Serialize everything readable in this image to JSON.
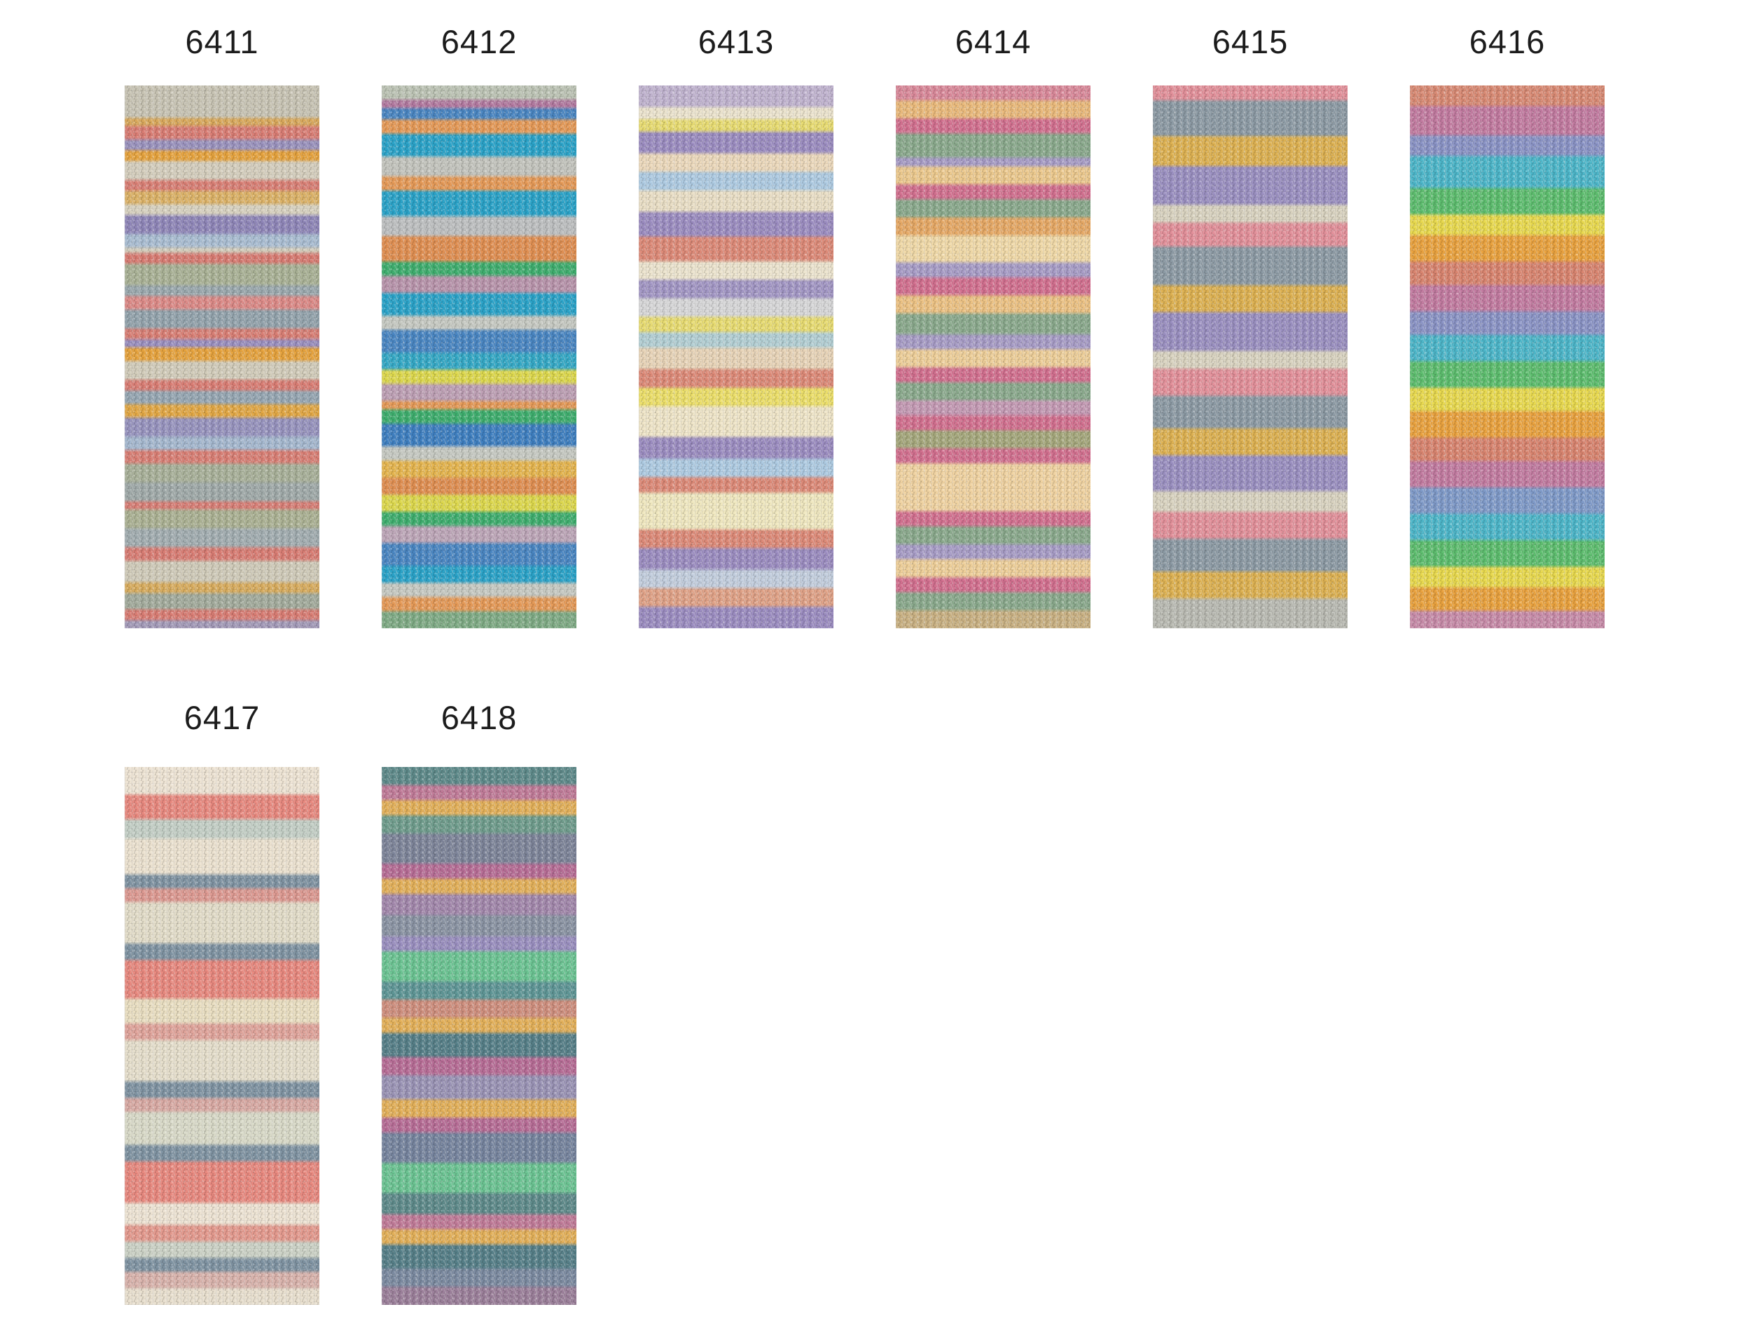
{
  "page": {
    "background_color": "#ffffff",
    "label_color": "#1c1c1c"
  },
  "swatches": [
    {
      "label": "6411",
      "description": "mottled cream-grey self-striping yarn with coral, gold, purple, blue and sage stripes",
      "stripes": [
        [
          "#c8c4b4",
          6
        ],
        [
          "#d9a95c",
          1.5
        ],
        [
          "#d97d74",
          2.5
        ],
        [
          "#9a92bd",
          2
        ],
        [
          "#e6a33e",
          2
        ],
        [
          "#d5cebd",
          3.5
        ],
        [
          "#d97f75",
          2
        ],
        [
          "#dcb267",
          2.5
        ],
        [
          "#d8d2c0",
          2
        ],
        [
          "#8f86b8",
          3.5
        ],
        [
          "#a9bdd2",
          2.5
        ],
        [
          "#d3cdbc",
          1
        ],
        [
          "#d87b72",
          2
        ],
        [
          "#a9b195",
          4
        ],
        [
          "#9aa8ad",
          2
        ],
        [
          "#dc8a87",
          2.5
        ],
        [
          "#93a3ac",
          3.5
        ],
        [
          "#d97f75",
          2
        ],
        [
          "#9a8fc0",
          1.5
        ],
        [
          "#e6a33e",
          2.5
        ],
        [
          "#d2ccba",
          3.5
        ],
        [
          "#d97d74",
          2
        ],
        [
          "#96a6b2",
          2.5
        ],
        [
          "#e2a846",
          2.5
        ],
        [
          "#9793be",
          3.5
        ],
        [
          "#a5b8cf",
          2.5
        ],
        [
          "#d97f75",
          2.5
        ],
        [
          "#a8b099",
          3.5
        ],
        [
          "#9fa9a8",
          3.5
        ],
        [
          "#d87e76",
          1.5
        ],
        [
          "#abb193",
          3.5
        ],
        [
          "#a2adb0",
          3.5
        ],
        [
          "#d97d74",
          2.5
        ],
        [
          "#d0cbb9",
          4
        ],
        [
          "#d8ac5e",
          2
        ],
        [
          "#a3ab9c",
          3
        ],
        [
          "#d97d74",
          2
        ],
        [
          "#a39ab8",
          1.5
        ]
      ]
    },
    {
      "label": "6412",
      "description": "bright teal-blue yarn with green, orange, yellow, mauve and grey stripes",
      "stripes": [
        [
          "#bcc3b4",
          2.5
        ],
        [
          "#b37aa0",
          1.5
        ],
        [
          "#4a86c2",
          2
        ],
        [
          "#e59a58",
          2.5
        ],
        [
          "#2ba3c8",
          4
        ],
        [
          "#c3c4bd",
          3.5
        ],
        [
          "#e59a58",
          2.5
        ],
        [
          "#2ba3c8",
          4.5
        ],
        [
          "#bdbfc0",
          3.5
        ],
        [
          "#e08f52",
          4.5
        ],
        [
          "#3fae6e",
          2.5
        ],
        [
          "#b894ab",
          3
        ],
        [
          "#2ba3c8",
          4
        ],
        [
          "#c6c9c2",
          2.5
        ],
        [
          "#4a86c2",
          4
        ],
        [
          "#35a9c6",
          3
        ],
        [
          "#ddd84e",
          2.5
        ],
        [
          "#bd9fb4",
          3
        ],
        [
          "#e59a58",
          1.5
        ],
        [
          "#3fae6e",
          2.5
        ],
        [
          "#3f7fc0",
          4
        ],
        [
          "#c6c9c2",
          2.5
        ],
        [
          "#e5b54f",
          3
        ],
        [
          "#e08f52",
          3
        ],
        [
          "#ddd84e",
          3
        ],
        [
          "#3fae6e",
          2.5
        ],
        [
          "#bda6b8",
          3
        ],
        [
          "#4a86c2",
          4
        ],
        [
          "#2ba3c8",
          3
        ],
        [
          "#c6c9c2",
          2.5
        ],
        [
          "#e59a58",
          2.5
        ],
        [
          "#7fab85",
          3
        ]
      ]
    },
    {
      "label": "6413",
      "description": "pastel lavender and cream yarn with salmon, yellow and light blue stripes",
      "stripes": [
        [
          "#c0b3cf",
          3.5
        ],
        [
          "#ece4ce",
          2
        ],
        [
          "#e8dc72",
          2
        ],
        [
          "#9b8cc0",
          3.5
        ],
        [
          "#ecd9bc",
          3
        ],
        [
          "#aecbe2",
          3
        ],
        [
          "#eadfc6",
          3.5
        ],
        [
          "#9b8cc0",
          4
        ],
        [
          "#dd8a78",
          4
        ],
        [
          "#ece4ce",
          3
        ],
        [
          "#a296c4",
          3
        ],
        [
          "#d7d7d8",
          3
        ],
        [
          "#e8dc72",
          2.5
        ],
        [
          "#b3cfd4",
          2.5
        ],
        [
          "#e8d4b8",
          3.5
        ],
        [
          "#dd8a78",
          3
        ],
        [
          "#ecdf6a",
          3
        ],
        [
          "#efe5c8",
          5
        ],
        [
          "#9b8cc0",
          3.5
        ],
        [
          "#aecbe2",
          3
        ],
        [
          "#dd8a78",
          2.5
        ],
        [
          "#f0e8c0",
          6
        ],
        [
          "#dd8a78",
          3
        ],
        [
          "#9b8cc0",
          3.5
        ],
        [
          "#c3cede",
          3
        ],
        [
          "#e0a287",
          3
        ],
        [
          "#9b8cc0",
          3.5
        ]
      ]
    },
    {
      "label": "6414",
      "description": "warm yarn with sage green, peach, rose pink, cream and lavender stripes",
      "stripes": [
        [
          "#d9899a",
          2.5
        ],
        [
          "#eaba7c",
          3
        ],
        [
          "#d2708f",
          2.5
        ],
        [
          "#8aa98c",
          4
        ],
        [
          "#a79cc6",
          1.5
        ],
        [
          "#ecc98e",
          3
        ],
        [
          "#d2708f",
          2.5
        ],
        [
          "#8aa98c",
          3
        ],
        [
          "#e6a966",
          3
        ],
        [
          "#f0d9a8",
          4.5
        ],
        [
          "#a79cc6",
          2.5
        ],
        [
          "#d2708f",
          3
        ],
        [
          "#ecc284",
          3
        ],
        [
          "#8aa98c",
          3.5
        ],
        [
          "#a79cc6",
          2.5
        ],
        [
          "#eecf9a",
          3
        ],
        [
          "#d2708f",
          2.5
        ],
        [
          "#8aa98c",
          3
        ],
        [
          "#c49ab4",
          2.5
        ],
        [
          "#d2708f",
          2.5
        ],
        [
          "#a5a77c",
          3
        ],
        [
          "#d2708f",
          2.5
        ],
        [
          "#f0d3a2",
          8
        ],
        [
          "#d2708f",
          2.5
        ],
        [
          "#8aa98c",
          3
        ],
        [
          "#a79cc6",
          2.5
        ],
        [
          "#eecf9a",
          3
        ],
        [
          "#d2708f",
          2.5
        ],
        [
          "#8aa98c",
          3
        ],
        [
          "#c9b183",
          3
        ]
      ]
    },
    {
      "label": "6415",
      "description": "muted repeating bands of grey-blue, gold, lavender, cream and pink",
      "stripes": [
        [
          "#e2909a",
          2.5
        ],
        [
          "#8c9aa4",
          6
        ],
        [
          "#ddb152",
          5
        ],
        [
          "#9a8fc0",
          6.5
        ],
        [
          "#d9d3c0",
          3
        ],
        [
          "#e2909a",
          4
        ],
        [
          "#8c9aa4",
          6.5
        ],
        [
          "#ddb152",
          4.5
        ],
        [
          "#9a8fc0",
          6.5
        ],
        [
          "#d9d3c0",
          3
        ],
        [
          "#e2909a",
          4.5
        ],
        [
          "#8c9aa4",
          5.5
        ],
        [
          "#ddb152",
          4.5
        ],
        [
          "#9a8fc0",
          6
        ],
        [
          "#d9d3c0",
          3.5
        ],
        [
          "#e2909a",
          4.5
        ],
        [
          "#8c9aa4",
          5.5
        ],
        [
          "#ddb152",
          4.5
        ],
        [
          "#b9bab2",
          5
        ]
      ]
    },
    {
      "label": "6416",
      "description": "soft rainbow gradient yarn cycling salmon, mauve, blue, teal, green, yellow, orange",
      "stripes": [
        [
          "#d88a74",
          3.5
        ],
        [
          "#c27ba0",
          5
        ],
        [
          "#8a93c5",
          3.5
        ],
        [
          "#4db6c9",
          5.5
        ],
        [
          "#5dbd6e",
          4.5
        ],
        [
          "#e8d94f",
          3.5
        ],
        [
          "#e9a23f",
          4.5
        ],
        [
          "#d8846f",
          4
        ],
        [
          "#c27ba0",
          4.5
        ],
        [
          "#8a93c5",
          4
        ],
        [
          "#4db6c9",
          4.5
        ],
        [
          "#5dbd6e",
          4.5
        ],
        [
          "#e8d94f",
          4
        ],
        [
          "#e9a23f",
          4.5
        ],
        [
          "#d8846f",
          4
        ],
        [
          "#c27ba0",
          4.5
        ],
        [
          "#7f9ac8",
          4.5
        ],
        [
          "#4db6c9",
          4.5
        ],
        [
          "#5dbd6e",
          4.5
        ],
        [
          "#e8d94f",
          3.5
        ],
        [
          "#e9a23f",
          4
        ],
        [
          "#c78ba8",
          3
        ]
      ]
    },
    {
      "label": "6417",
      "description": "pale cream yarn with coral pink, mint grey and slate blue stripes",
      "stripes": [
        [
          "#eee4d4",
          5
        ],
        [
          "#e8897f",
          4.5
        ],
        [
          "#c4cfc6",
          3.5
        ],
        [
          "#ece2d0",
          6.5
        ],
        [
          "#7f93a2",
          2.5
        ],
        [
          "#dd9a92",
          2.5
        ],
        [
          "#e3ddc9",
          7.5
        ],
        [
          "#7f93a2",
          3
        ],
        [
          "#e8897f",
          7
        ],
        [
          "#eadfc2",
          4.5
        ],
        [
          "#e0a49b",
          3
        ],
        [
          "#e6dfcc",
          7.5
        ],
        [
          "#7f93a2",
          3
        ],
        [
          "#d9aaa4",
          2.5
        ],
        [
          "#d9dac8",
          6
        ],
        [
          "#7f93a2",
          3
        ],
        [
          "#e8897f",
          7.5
        ],
        [
          "#eee4d4",
          4
        ],
        [
          "#e49a8e",
          3
        ],
        [
          "#ccd2c6",
          3
        ],
        [
          "#7f93a2",
          2.5
        ],
        [
          "#d9b3ac",
          3
        ],
        [
          "#e9e0cf",
          3
        ]
      ]
    },
    {
      "label": "6418",
      "description": "muted teal-grey yarn with mauve, gold, lavender and spearmint stripes",
      "stripes": [
        [
          "#5e8a8a",
          3
        ],
        [
          "#c07b98",
          2.5
        ],
        [
          "#e3b05a",
          2.5
        ],
        [
          "#6f9c8c",
          3
        ],
        [
          "#7d8499",
          5
        ],
        [
          "#b76d96",
          2.5
        ],
        [
          "#e3b05a",
          2.5
        ],
        [
          "#a287ab",
          3.5
        ],
        [
          "#8a93a3",
          3.5
        ],
        [
          "#9a8fbf",
          2.5
        ],
        [
          "#6cc493",
          5
        ],
        [
          "#5f9696",
          3
        ],
        [
          "#cf8f7e",
          3
        ],
        [
          "#e3b05a",
          2.5
        ],
        [
          "#567f88",
          4
        ],
        [
          "#b76d96",
          3
        ],
        [
          "#9a93b5",
          4
        ],
        [
          "#e3b05a",
          3
        ],
        [
          "#b76d96",
          2.5
        ],
        [
          "#76849e",
          5
        ],
        [
          "#6cc493",
          5
        ],
        [
          "#5e8a8a",
          3.5
        ],
        [
          "#c07b98",
          2.5
        ],
        [
          "#e3b05a",
          2.5
        ],
        [
          "#567f88",
          4
        ],
        [
          "#7b8aa0",
          3
        ],
        [
          "#9b7f9a",
          3
        ]
      ]
    }
  ]
}
